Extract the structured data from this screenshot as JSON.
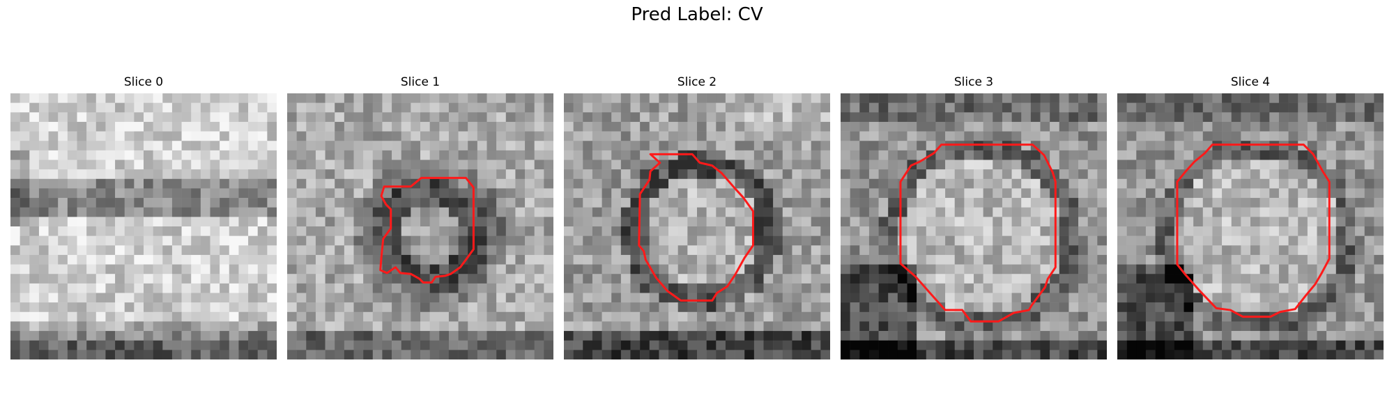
{
  "figure": {
    "title": "Pred Label: CV"
  },
  "colors": {
    "contour": "#ff1a1a",
    "background": "#ffffff"
  },
  "panels": [
    {
      "title": "Slice 0",
      "image": "grayscale-crop",
      "has_contour": false
    },
    {
      "title": "Slice 1",
      "image": "grayscale-crop",
      "has_contour": true
    },
    {
      "title": "Slice 2",
      "image": "grayscale-crop",
      "has_contour": true
    },
    {
      "title": "Slice 3",
      "image": "grayscale-crop",
      "has_contour": true
    },
    {
      "title": "Slice 4",
      "image": "grayscale-crop",
      "has_contour": true
    }
  ]
}
